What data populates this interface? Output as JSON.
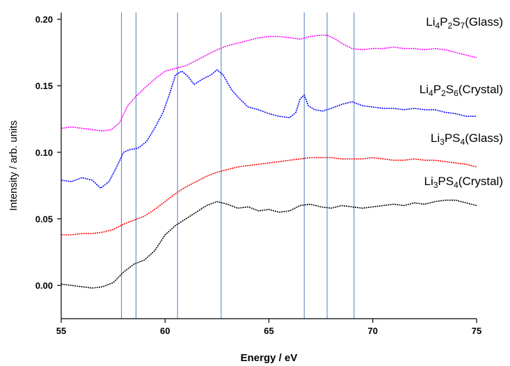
{
  "chart_data": {
    "type": "line",
    "title": "",
    "xlabel": "Energy / eV",
    "ylabel": "Intensity / arb. units",
    "xlim": [
      55,
      75
    ],
    "ylim": [
      -0.025,
      0.205
    ],
    "xticks": [
      "55",
      "60",
      "65",
      "70",
      "75"
    ],
    "yticks": [
      "0.00",
      "0.05",
      "0.10",
      "0.15",
      "0.20"
    ],
    "grid": false,
    "reference_lines_x": [
      57.9,
      58.6,
      60.6,
      62.7,
      66.7,
      67.8,
      69.1
    ],
    "reference_line_color": "#4a7fc1",
    "series": [
      {
        "name": "Li4P2S7(Glass)",
        "label_parts": [
          [
            "Li",
            ""
          ],
          [
            "4",
            "sub"
          ],
          [
            "P",
            ""
          ],
          [
            "2",
            "sub"
          ],
          [
            "S",
            ""
          ],
          [
            "7",
            "sub"
          ],
          [
            "(Glass)",
            ""
          ]
        ],
        "color": "#ff00ff",
        "x": [
          55,
          55.5,
          56,
          56.5,
          57,
          57.4,
          57.8,
          58.2,
          58.6,
          59,
          59.5,
          60,
          60.5,
          61,
          61.5,
          62,
          62.5,
          63,
          63.5,
          64,
          64.5,
          65,
          65.5,
          66,
          66.5,
          67,
          67.5,
          67.8,
          68.2,
          68.6,
          69,
          69.5,
          70,
          70.5,
          71,
          71.5,
          72,
          72.5,
          73,
          73.5,
          74,
          74.5,
          75
        ],
        "y": [
          0.118,
          0.119,
          0.118,
          0.117,
          0.116,
          0.117,
          0.122,
          0.135,
          0.142,
          0.148,
          0.155,
          0.161,
          0.163,
          0.165,
          0.169,
          0.173,
          0.177,
          0.18,
          0.182,
          0.184,
          0.186,
          0.187,
          0.187,
          0.186,
          0.185,
          0.187,
          0.188,
          0.188,
          0.185,
          0.181,
          0.178,
          0.177,
          0.178,
          0.178,
          0.179,
          0.178,
          0.178,
          0.177,
          0.178,
          0.177,
          0.175,
          0.173,
          0.171
        ]
      },
      {
        "name": "Li4P2S6(Crystal)",
        "label_parts": [
          [
            "Li",
            ""
          ],
          [
            "4",
            "sub"
          ],
          [
            "P",
            ""
          ],
          [
            "2",
            "sub"
          ],
          [
            "S",
            ""
          ],
          [
            "6",
            "sub"
          ],
          [
            "(Crystal)",
            ""
          ]
        ],
        "color": "#0000ff",
        "x": [
          55,
          55.5,
          56,
          56.5,
          56.9,
          57.3,
          57.7,
          58,
          58.3,
          58.7,
          59.1,
          59.5,
          59.9,
          60.2,
          60.5,
          60.8,
          61.1,
          61.4,
          61.8,
          62.2,
          62.5,
          62.8,
          63.2,
          63.6,
          64,
          64.5,
          65,
          65.5,
          66,
          66.3,
          66.5,
          66.7,
          66.9,
          67.2,
          67.6,
          68,
          68.5,
          69,
          69.5,
          70,
          70.5,
          71,
          71.5,
          72,
          72.5,
          73,
          73.5,
          74,
          74.5,
          75
        ],
        "y": [
          0.079,
          0.078,
          0.081,
          0.079,
          0.073,
          0.078,
          0.09,
          0.1,
          0.102,
          0.103,
          0.108,
          0.118,
          0.13,
          0.143,
          0.158,
          0.161,
          0.157,
          0.151,
          0.155,
          0.158,
          0.162,
          0.158,
          0.147,
          0.14,
          0.134,
          0.132,
          0.129,
          0.127,
          0.126,
          0.13,
          0.14,
          0.143,
          0.135,
          0.132,
          0.131,
          0.133,
          0.136,
          0.138,
          0.135,
          0.134,
          0.133,
          0.133,
          0.132,
          0.133,
          0.132,
          0.132,
          0.13,
          0.129,
          0.127,
          0.127
        ]
      },
      {
        "name": "Li3PS4(Glass)",
        "label_parts": [
          [
            "Li",
            ""
          ],
          [
            "3",
            "sub"
          ],
          [
            "PS",
            ""
          ],
          [
            "4",
            "sub"
          ],
          [
            "(Glass)",
            ""
          ]
        ],
        "color": "#ff0000",
        "x": [
          55,
          55.5,
          56,
          56.5,
          57,
          57.5,
          58,
          58.5,
          59,
          59.5,
          60,
          60.5,
          61,
          61.5,
          62,
          62.5,
          63,
          63.5,
          64,
          64.5,
          65,
          65.5,
          66,
          66.5,
          67,
          67.5,
          68,
          68.5,
          69,
          69.5,
          70,
          70.5,
          71,
          71.5,
          72,
          72.5,
          73,
          73.5,
          74,
          74.5,
          75
        ],
        "y": [
          0.038,
          0.038,
          0.039,
          0.039,
          0.04,
          0.042,
          0.046,
          0.049,
          0.052,
          0.057,
          0.063,
          0.069,
          0.074,
          0.078,
          0.082,
          0.085,
          0.087,
          0.089,
          0.09,
          0.091,
          0.092,
          0.093,
          0.094,
          0.095,
          0.096,
          0.096,
          0.096,
          0.095,
          0.095,
          0.095,
          0.096,
          0.095,
          0.094,
          0.094,
          0.095,
          0.094,
          0.094,
          0.093,
          0.092,
          0.091,
          0.089
        ]
      },
      {
        "name": "Li3PS4(Crystal)",
        "label_parts": [
          [
            "Li",
            ""
          ],
          [
            "3",
            "sub"
          ],
          [
            "PS",
            ""
          ],
          [
            "4",
            "sub"
          ],
          [
            "(Crystal)",
            ""
          ]
        ],
        "color": "#000000",
        "x": [
          55,
          55.5,
          56,
          56.5,
          57,
          57.5,
          58,
          58.5,
          59,
          59.5,
          60,
          60.5,
          61,
          61.5,
          62,
          62.5,
          63,
          63.5,
          64,
          64.5,
          65,
          65.5,
          66,
          66.5,
          67,
          67.5,
          68,
          68.5,
          69,
          69.5,
          70,
          70.5,
          71,
          71.5,
          72,
          72.5,
          73,
          73.5,
          74,
          74.5,
          75
        ],
        "y": [
          0.001,
          0.0,
          -0.001,
          -0.002,
          -0.001,
          0.002,
          0.01,
          0.016,
          0.019,
          0.026,
          0.038,
          0.045,
          0.05,
          0.055,
          0.06,
          0.063,
          0.061,
          0.058,
          0.059,
          0.056,
          0.057,
          0.055,
          0.056,
          0.06,
          0.061,
          0.059,
          0.058,
          0.06,
          0.059,
          0.058,
          0.059,
          0.06,
          0.061,
          0.06,
          0.062,
          0.061,
          0.063,
          0.064,
          0.064,
          0.062,
          0.06
        ]
      }
    ]
  }
}
